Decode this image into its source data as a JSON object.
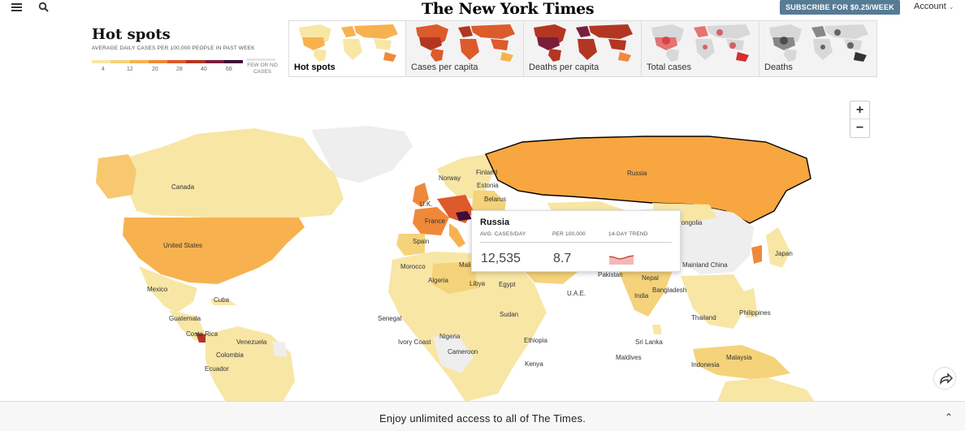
{
  "header": {
    "logo": "The New York Times",
    "subscribe_label": "SUBSCRIBE FOR $0.25/WEEK",
    "account_label": "Account",
    "menu_icon": "hamburger-menu-icon",
    "search_icon": "search-icon"
  },
  "legend": {
    "title": "Hot spots",
    "subtitle": "AVERAGE DAILY CASES PER 100,000 PEOPLE IN PAST WEEK",
    "ticks": [
      "4",
      "12",
      "20",
      "28",
      "40",
      "68"
    ],
    "no_data_label": "FEW OR NO CASES",
    "colors": [
      "#f8e6a5",
      "#f5d37a",
      "#f7b24f",
      "#f0883a",
      "#dd5a2b",
      "#b33622",
      "#7a1d3b",
      "#3e0d3a"
    ]
  },
  "tabs": [
    {
      "label": "Hot spots",
      "active": true
    },
    {
      "label": "Cases per capita",
      "active": false
    },
    {
      "label": "Deaths per capita",
      "active": false
    },
    {
      "label": "Total cases",
      "active": false
    },
    {
      "label": "Deaths",
      "active": false
    }
  ],
  "zoom": {
    "in_label": "+",
    "out_label": "−"
  },
  "map": {
    "labels": {
      "canada": "Canada",
      "united_states": "United States",
      "mexico": "Mexico",
      "cuba": "Cuba",
      "guatemala": "Guatemala",
      "costa_rica": "Costa Rica",
      "venezuela": "Venezuela",
      "colombia": "Colombia",
      "ecuador": "Ecuador",
      "norway": "Norway",
      "finland": "Finland",
      "estonia": "Estonia",
      "belarus": "Belarus",
      "uk": "U.K.",
      "france": "France",
      "spain": "Spain",
      "morocco": "Morocco",
      "algeria": "Algeria",
      "libya": "Libya",
      "egypt": "Egypt",
      "mali": "Mali",
      "senegal": "Senegal",
      "sudan": "Sudan",
      "nigeria": "Nigeria",
      "ivory_coast": "Ivory Coast",
      "cameroon": "Cameroon",
      "ethiopia": "Ethiopia",
      "kenya": "Kenya",
      "russia": "Russia",
      "mongolia": "Mongolia",
      "mainland_china": "Mainland China",
      "japan": "Japan",
      "pakistan": "Pakistan",
      "nepal": "Nepal",
      "india": "India",
      "bangladesh": "Bangladesh",
      "uae": "U.A.E.",
      "thailand": "Thailand",
      "philippines": "Philippines",
      "sri_lanka": "Sri Lanka",
      "maldives": "Maldives",
      "malaysia": "Malaysia",
      "indonesia": "Indonesia"
    }
  },
  "tooltip": {
    "country": "Russia",
    "col_cases": "AVG. CASES/DAY",
    "col_per100k": "PER 100,000",
    "col_trend": "14-DAY TREND",
    "cases_value": "12,535",
    "per100k_value": "8.7"
  },
  "share_icon": "share-arrow-icon",
  "banner": {
    "text": "Enjoy unlimited access to all of The Times.",
    "chevron_icon": "chevron-up-icon"
  }
}
